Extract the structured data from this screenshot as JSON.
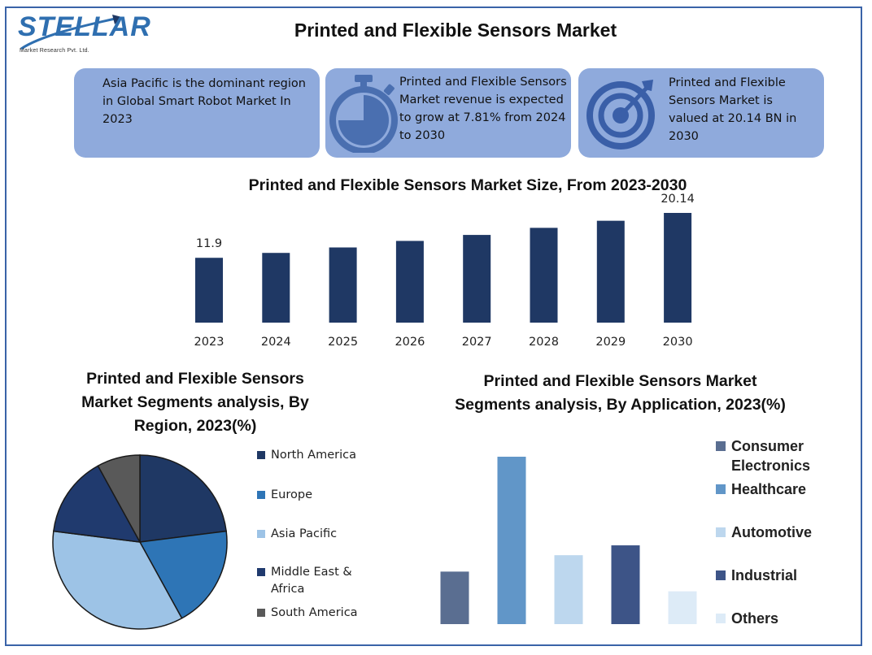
{
  "header": {
    "logo_text": "STELLAR",
    "logo_sub": "Market Research Pvt. Ltd.",
    "title": "Printed and Flexible Sensors Market"
  },
  "cards": [
    {
      "text": "Asia Pacific is the dominant region in Global Smart Robot Market In 2023",
      "icon": ""
    },
    {
      "text": "Printed and Flexible Sensors Market revenue is expected to grow at 7.81% from 2024 to 2030",
      "icon": "stopwatch-icon"
    },
    {
      "text": "Printed and Flexible Sensors Market is valued at 20.14 BN in 2030",
      "icon": "target-icon"
    }
  ],
  "colors": {
    "card_bg": "#8faadc",
    "bar": "#1f3864",
    "frame": "#3a63a8"
  },
  "chart_data": [
    {
      "type": "bar",
      "title": "Printed and Flexible Sensors Market Size, From 2023-2030",
      "categories": [
        "2023",
        "2024",
        "2025",
        "2026",
        "2027",
        "2028",
        "2029",
        "2030"
      ],
      "values": [
        11.9,
        12.8,
        13.8,
        15.0,
        16.1,
        17.4,
        18.7,
        20.14
      ],
      "data_labels": [
        "11.9",
        "",
        "",
        "",
        "",
        "",
        "",
        "20.14"
      ],
      "ylim": [
        0,
        22
      ],
      "grid": false,
      "color": "#1f3864"
    },
    {
      "type": "pie",
      "title": "Printed and Flexible Sensors Market Segments analysis, By Region, 2023(%)",
      "categories": [
        "North America",
        "Europe",
        "Asia Pacific",
        "Middle East & Africa",
        "South America"
      ],
      "values": [
        23,
        19,
        35,
        15,
        8
      ],
      "colors": [
        "#1f3864",
        "#2e75b6",
        "#9dc3e6",
        "#203a6e",
        "#595959"
      ],
      "legend": "right"
    },
    {
      "type": "bar",
      "title": "Printed and Flexible Sensors Market Segments analysis, By Application, 2023(%)",
      "categories": [
        "Consumer Electronics",
        "Healthcare",
        "Automotive",
        "Industrial",
        "Others"
      ],
      "values": [
        16,
        51,
        21,
        24,
        10
      ],
      "colors": [
        "#5a6e91",
        "#6196c8",
        "#bdd7ee",
        "#3d5487",
        "#ddebf7"
      ],
      "legend": "right",
      "grid": false
    }
  ]
}
